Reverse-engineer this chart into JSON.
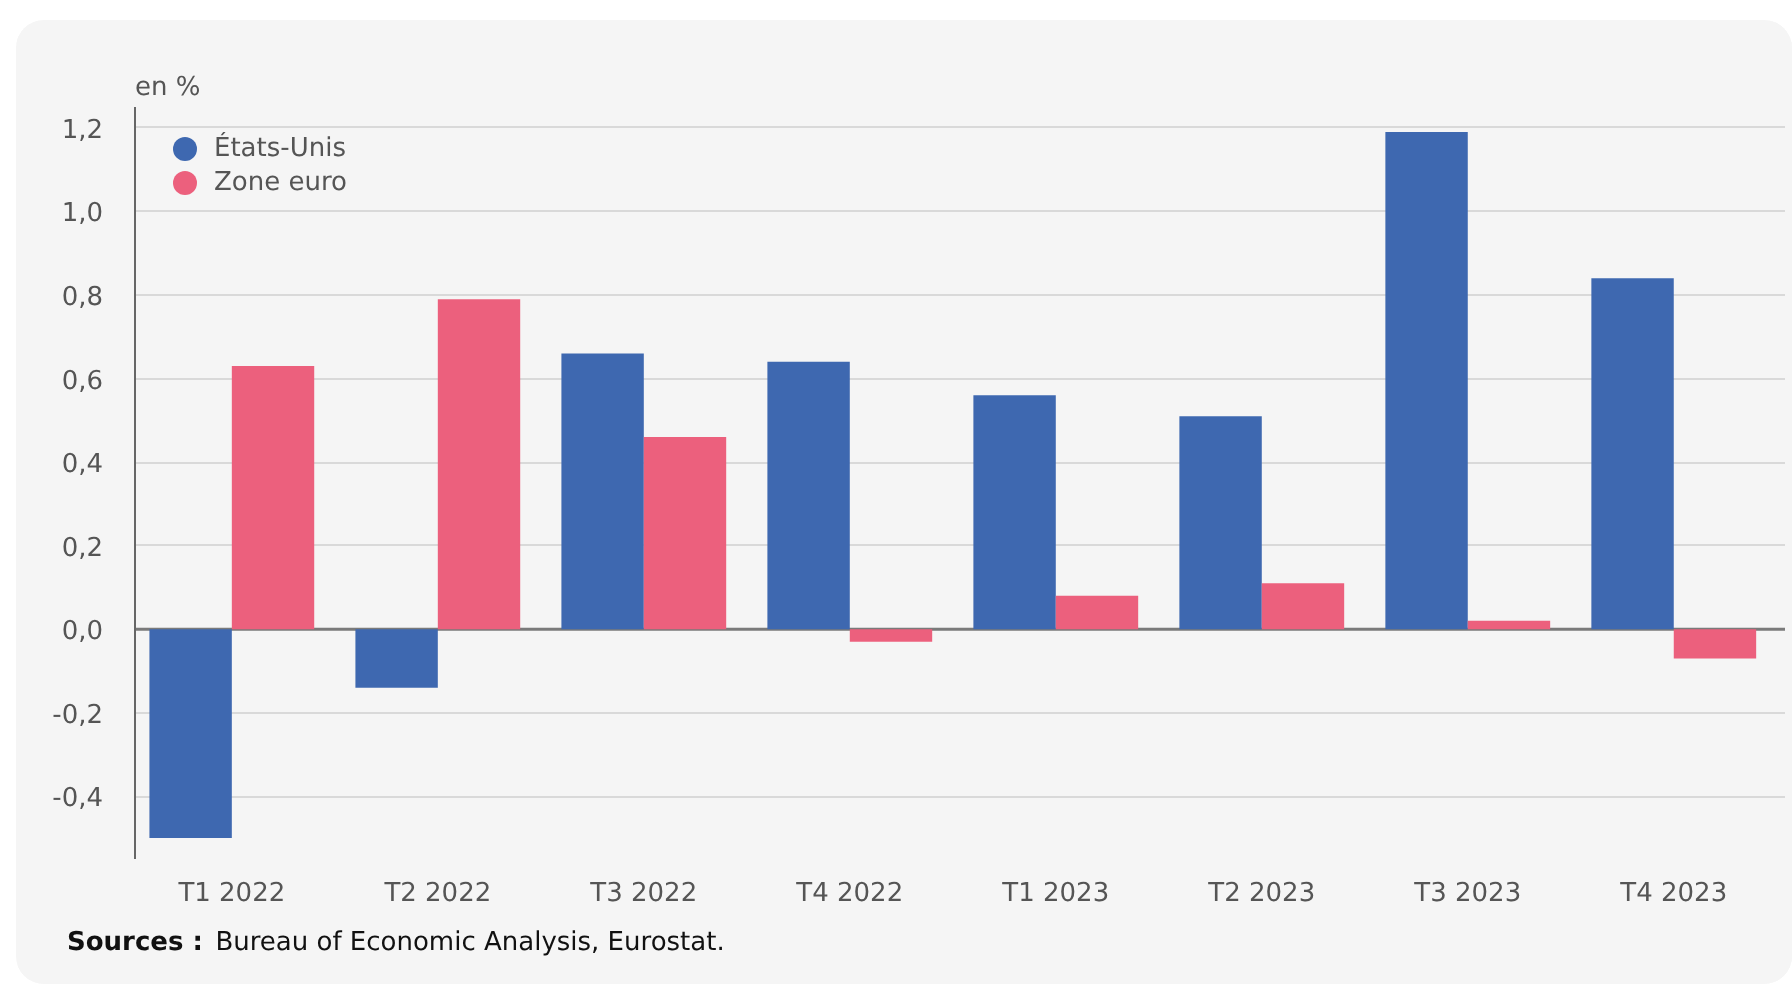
{
  "chart_data": {
    "type": "bar",
    "ylabel": "en %",
    "categories": [
      "T1 2022",
      "T2 2022",
      "T3 2022",
      "T4 2022",
      "T1 2023",
      "T2 2023",
      "T3 2023",
      "T4 2023"
    ],
    "series": [
      {
        "name": "États-Unis",
        "color": "#3e68b0",
        "values": [
          -0.5,
          -0.14,
          0.66,
          0.64,
          0.56,
          0.51,
          1.19,
          0.84
        ]
      },
      {
        "name": "Zone euro",
        "color": "#ec607d",
        "values": [
          0.63,
          0.79,
          0.46,
          -0.03,
          0.08,
          0.11,
          0.02,
          -0.07
        ]
      }
    ],
    "ylim": [
      -0.55,
      1.25
    ],
    "yticks": [
      {
        "value": -0.4,
        "label": "-0,4"
      },
      {
        "value": -0.2,
        "label": "-0,2"
      },
      {
        "value": 0,
        "label": "0,0"
      },
      {
        "value": 0.2,
        "label": "0,2"
      },
      {
        "value": 0.4,
        "label": "0,4"
      },
      {
        "value": 0.6,
        "label": "0,6"
      },
      {
        "value": 0.8,
        "label": "0,8"
      },
      {
        "value": 1.0,
        "label": "1,0"
      },
      {
        "value": 1.2,
        "label": "1,2"
      }
    ],
    "grid": "y",
    "legend": "top left",
    "annotations": [
      "Sources :",
      "Bureau of Economic Analysis, Eurostat."
    ]
  }
}
